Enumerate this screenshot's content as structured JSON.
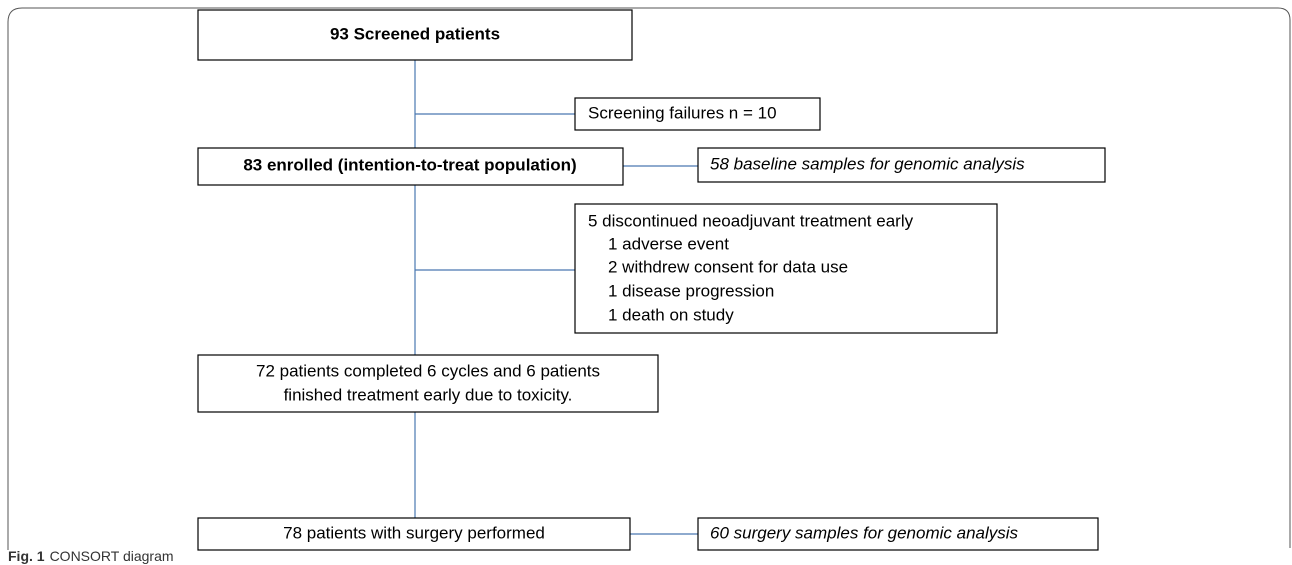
{
  "nodes": [
    {
      "label": "93 Screened patients"
    },
    {
      "label": "Screening failures n = 10"
    },
    {
      "label": "83 enrolled (intention-to-treat population)"
    },
    {
      "label": "58 baseline samples for genomic analysis"
    },
    {
      "lines": [
        "5 discontinued neoadjuvant treatment early",
        "1 adverse event",
        "2 withdrew consent for data use",
        "1 disease progression",
        "1 death on study"
      ]
    },
    {
      "lines": [
        "72 patients completed 6 cycles and 6 patients",
        "finished treatment early due to toxicity."
      ]
    },
    {
      "label": "78 patients with surgery performed"
    },
    {
      "label": "60 surgery samples for genomic analysis"
    }
  ],
  "caption": {
    "label": "Fig. 1",
    "text": "CONSORT diagram"
  }
}
